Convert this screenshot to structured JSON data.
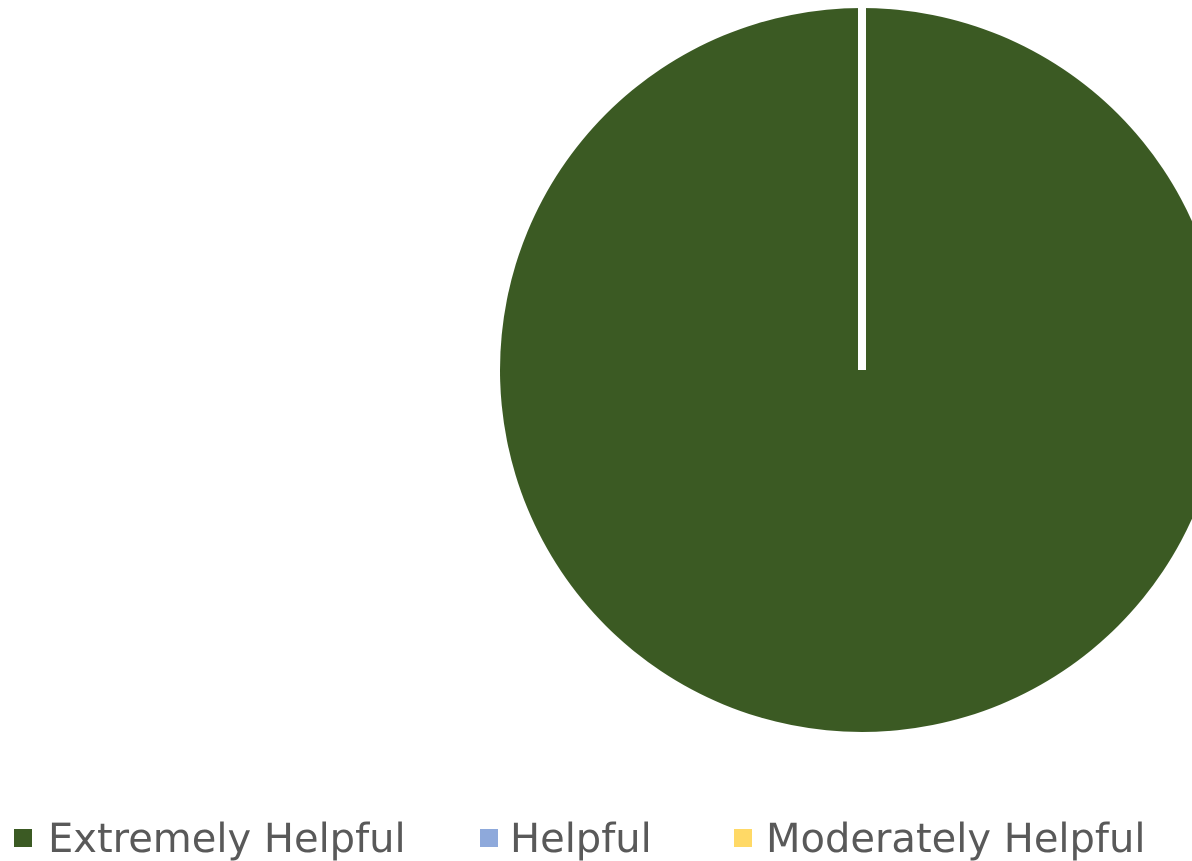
{
  "chart_data": {
    "type": "pie",
    "title": "",
    "categories": [
      "Extremely Helpful",
      "Helpful",
      "Moderately Helpful"
    ],
    "values": [
      100,
      0,
      0
    ],
    "colors": [
      "#3B5A23",
      "#8EA9DB",
      "#FFD966"
    ],
    "start_angle_deg": 0,
    "direction": "clockwise",
    "legend_position": "bottom",
    "slice_separator_color": "#ffffff"
  }
}
